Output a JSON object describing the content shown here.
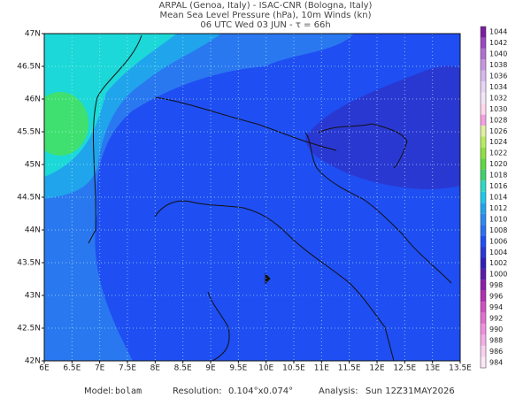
{
  "header": {
    "lines": [
      "ARPAL (Genoa, Italy)  -  ISAC-CNR (Bologna, Italy)",
      "Mean Sea Level Pressure (hPa), 10m Winds (kn)",
      "06 UTC Wed 03 JUN  -  τ = 66h"
    ]
  },
  "map": {
    "lon_ticks": [
      "6E",
      "6.5E",
      "7E",
      "7.5E",
      "8E",
      "8.5E",
      "9E",
      "9.5E",
      "10E",
      "10.5E",
      "11E",
      "11.5E",
      "12E",
      "12.5E",
      "13E",
      "13.5E"
    ],
    "lat_ticks": [
      "47N",
      "46.5N",
      "46N",
      "45.5N",
      "45N",
      "44.5N",
      "44N",
      "43.5N",
      "43N",
      "42.5N",
      "42N"
    ]
  },
  "colorbar": {
    "labels": [
      "1044",
      "1042",
      "1040",
      "1038",
      "1036",
      "1034",
      "1032",
      "1030",
      "1028",
      "1026",
      "1024",
      "1022",
      "1020",
      "1018",
      "1016",
      "1014",
      "1012",
      "1010",
      "1008",
      "1006",
      "1004",
      "1002",
      "1000",
      "998",
      "996",
      "994",
      "992",
      "990",
      "988",
      "986",
      "984"
    ]
  },
  "footer": {
    "model_label": "Model:",
    "model": "bolam",
    "resolution_label": "Resolution:",
    "resolution": "0.104°x0.074°",
    "analysis_label": "Analysis:",
    "analysis": "Sun 12Z31MAY2026"
  }
}
